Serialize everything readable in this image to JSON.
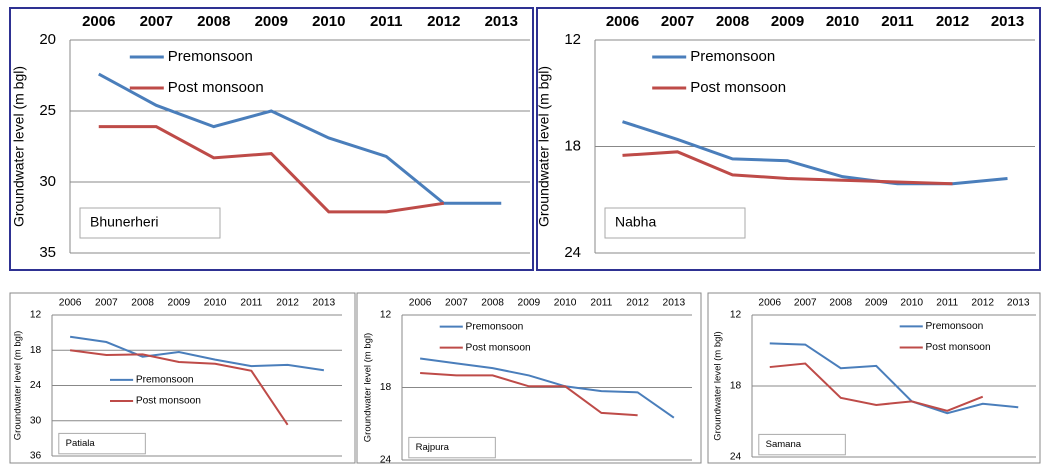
{
  "chart_data": [
    {
      "type": "line",
      "annotation": "Bhunerheri",
      "y_label": "Groundwater level (m bgl)",
      "categories": [
        "2006",
        "2007",
        "2008",
        "2009",
        "2010",
        "2011",
        "2012",
        "2013"
      ],
      "series": [
        {
          "name": "Premonsoon",
          "color": "#4a7ebb",
          "values": [
            22.4,
            24.6,
            26.1,
            25.0,
            26.9,
            28.2,
            31.5,
            31.5
          ]
        },
        {
          "name": "Post monsoon",
          "color": "#be4b48",
          "values": [
            26.1,
            26.1,
            28.3,
            28.0,
            32.1,
            32.1,
            31.5,
            null
          ]
        }
      ],
      "ylim": [
        35,
        20
      ],
      "yticks": [
        20,
        25,
        30,
        35
      ],
      "grid": true,
      "legend": "upper-left"
    },
    {
      "type": "line",
      "annotation": "Nabha",
      "y_label": "Groundwater level (m bgl)",
      "categories": [
        "2006",
        "2007",
        "2008",
        "2009",
        "2010",
        "2011",
        "2012",
        "2013"
      ],
      "series": [
        {
          "name": "Premonsoon",
          "color": "#4a7ebb",
          "values": [
            16.6,
            17.6,
            18.7,
            18.8,
            19.7,
            20.1,
            20.1,
            19.8
          ]
        },
        {
          "name": "Post monsoon",
          "color": "#be4b48",
          "values": [
            18.5,
            18.3,
            19.6,
            19.8,
            19.9,
            20.0,
            20.1,
            null
          ]
        }
      ],
      "ylim": [
        24,
        12
      ],
      "yticks": [
        12,
        18,
        24
      ],
      "grid": true,
      "legend": "upper-left"
    },
    {
      "type": "line",
      "annotation": "Patiala",
      "y_label": "Groundwater level (m bgl)",
      "categories": [
        "2006",
        "2007",
        "2008",
        "2009",
        "2010",
        "2011",
        "2012",
        "2013"
      ],
      "series": [
        {
          "name": "Premonsoon",
          "color": "#4a7ebb",
          "values": [
            15.7,
            16.6,
            19.1,
            18.3,
            19.6,
            20.7,
            20.5,
            21.4
          ]
        },
        {
          "name": "Post monsoon",
          "color": "#be4b48",
          "values": [
            18.0,
            18.8,
            18.7,
            20.0,
            20.3,
            21.5,
            30.7,
            null
          ]
        }
      ],
      "ylim": [
        36,
        12
      ],
      "yticks": [
        12,
        18,
        24,
        30,
        36
      ],
      "grid": true,
      "legend": "lower-left"
    },
    {
      "type": "line",
      "annotation": "Rajpura",
      "y_label": "Groundwater level (m bgl)",
      "categories": [
        "2006",
        "2007",
        "2008",
        "2009",
        "2010",
        "2011",
        "2012",
        "2013"
      ],
      "series": [
        {
          "name": "Premonsoon",
          "color": "#4a7ebb",
          "values": [
            15.6,
            16.0,
            16.4,
            17.0,
            17.9,
            18.3,
            18.4,
            20.5
          ]
        },
        {
          "name": "Post monsoon",
          "color": "#be4b48",
          "values": [
            16.8,
            17.0,
            17.0,
            17.9,
            17.9,
            20.1,
            20.3,
            null
          ]
        }
      ],
      "ylim": [
        24,
        12
      ],
      "yticks": [
        12,
        18,
        24
      ],
      "grid": true,
      "legend": "upper-left"
    },
    {
      "type": "line",
      "annotation": "Samana",
      "y_label": "Groundwater level (m bgl)",
      "categories": [
        "2006",
        "2007",
        "2008",
        "2009",
        "2010",
        "2011",
        "2012",
        "2013"
      ],
      "series": [
        {
          "name": "Premonsoon",
          "color": "#4a7ebb",
          "values": [
            14.4,
            14.5,
            16.5,
            16.3,
            19.3,
            20.3,
            19.5,
            19.8
          ]
        },
        {
          "name": "Post monsoon",
          "color": "#be4b48",
          "values": [
            16.4,
            16.1,
            19.0,
            19.6,
            19.3,
            20.1,
            18.9,
            null
          ]
        }
      ],
      "ylim": [
        24,
        12
      ],
      "yticks": [
        12,
        18,
        24
      ],
      "grid": true,
      "legend": "upper-right"
    }
  ]
}
